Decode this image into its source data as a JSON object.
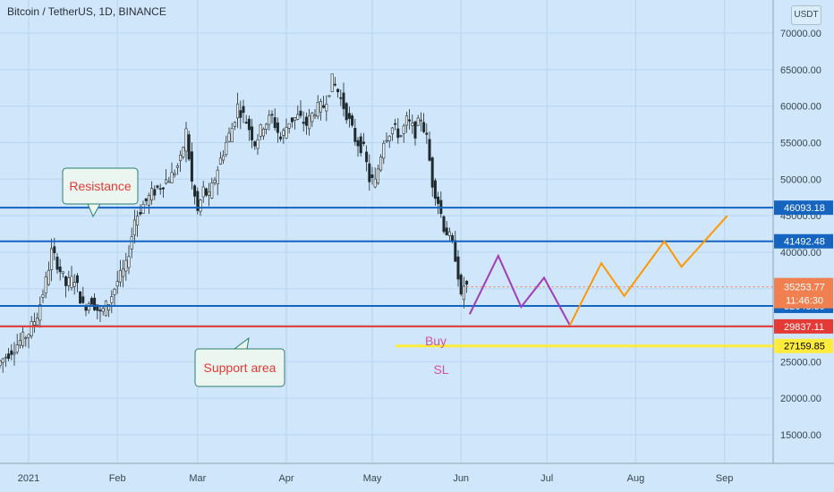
{
  "header": {
    "title": "Bitcoin / TetherUS, 1D, BINANCE",
    "currency": "USDT"
  },
  "colors": {
    "background": "#cfe6fb",
    "grid": "#b9d6f1",
    "candle": "#1f2a2e",
    "price_line_blue": "#1565c0",
    "support_red": "#e53935",
    "stop_yellow": "#ffeb3b",
    "projection_purple": "#a23bb8",
    "projection_orange": "#ff9800",
    "current_price": "#f08050"
  },
  "chart_data": {
    "type": "candlestick",
    "x_tick_labels": [
      "2021",
      "Feb",
      "Mar",
      "Apr",
      "May",
      "Jun",
      "Jul",
      "Aug",
      "Sep"
    ],
    "y_tick_labels": [
      "15000.00",
      "20000.00",
      "25000.00",
      "30000.00",
      "35000.00",
      "40000.00",
      "45000.00",
      "50000.00",
      "55000.00",
      "60000.00",
      "65000.00",
      "70000.00"
    ],
    "ylim": [
      13000,
      73000
    ],
    "price_path_daily_close": [
      [
        0,
        29000
      ],
      [
        3,
        31500
      ],
      [
        6,
        36000
      ],
      [
        8,
        40000
      ],
      [
        10,
        38500
      ],
      [
        13,
        35500
      ],
      [
        16,
        36500
      ],
      [
        19,
        32500
      ],
      [
        22,
        33500
      ],
      [
        25,
        31500
      ],
      [
        28,
        33200
      ],
      [
        31,
        36000
      ],
      [
        34,
        38000
      ],
      [
        37,
        44500
      ],
      [
        40,
        46500
      ],
      [
        43,
        48000
      ],
      [
        47,
        49500
      ],
      [
        50,
        50500
      ],
      [
        53,
        52500
      ],
      [
        55,
        56500
      ],
      [
        57,
        49500
      ],
      [
        59,
        45500
      ],
      [
        61,
        48500
      ],
      [
        63,
        47500
      ],
      [
        66,
        51500
      ],
      [
        69,
        55000
      ],
      [
        71,
        57000
      ],
      [
        73,
        60000
      ],
      [
        76,
        58000
      ],
      [
        79,
        55000
      ],
      [
        82,
        57500
      ],
      [
        85,
        58500
      ],
      [
        88,
        55500
      ],
      [
        91,
        58000
      ],
      [
        94,
        58500
      ],
      [
        97,
        57500
      ],
      [
        100,
        59500
      ],
      [
        103,
        60000
      ],
      [
        106,
        63500
      ],
      [
        108,
        62000
      ],
      [
        111,
        59000
      ],
      [
        114,
        55500
      ],
      [
        117,
        54000
      ],
      [
        119,
        50000
      ],
      [
        121,
        49500
      ],
      [
        124,
        55500
      ],
      [
        127,
        57000
      ],
      [
        130,
        56000
      ],
      [
        132,
        58000
      ],
      [
        135,
        56500
      ],
      [
        137,
        58500
      ],
      [
        139,
        55500
      ],
      [
        141,
        49500
      ],
      [
        143,
        47000
      ],
      [
        145,
        43500
      ],
      [
        147,
        42000
      ],
      [
        149,
        39500
      ],
      [
        150,
        37000
      ],
      [
        151,
        33500
      ],
      [
        152,
        35500
      ],
      [
        153,
        35254
      ]
    ],
    "horizontal_levels": [
      {
        "value": 46093.18,
        "label": "46093.18",
        "color": "#1565c0"
      },
      {
        "value": 41492.48,
        "label": "41492.48",
        "color": "#1565c0"
      },
      {
        "value": 32643.39,
        "label": "32643.39",
        "color": "#1565c0"
      },
      {
        "value": 29837.11,
        "label": "29837.11",
        "color": "#e53935"
      },
      {
        "value": 27159.85,
        "label": "27159.85",
        "color": "#ffeb3b"
      }
    ],
    "current_price": {
      "value": 35253.77,
      "label": "35253.77",
      "countdown": "11:46:30"
    },
    "projection_purple": [
      [
        154,
        31500
      ],
      [
        164,
        39500
      ],
      [
        172,
        32500
      ],
      [
        180,
        36500
      ],
      [
        189,
        30000
      ]
    ],
    "projection_orange": [
      [
        189,
        30000
      ],
      [
        200,
        38500
      ],
      [
        208,
        34000
      ],
      [
        222,
        41500
      ],
      [
        228,
        38000
      ],
      [
        244,
        45000
      ]
    ],
    "annotations": [
      {
        "text": "Resistance",
        "type": "callout"
      },
      {
        "text": "Support area",
        "type": "callout"
      },
      {
        "text": "Buy",
        "type": "label"
      },
      {
        "text": "SL",
        "type": "label"
      }
    ],
    "grid": true
  }
}
